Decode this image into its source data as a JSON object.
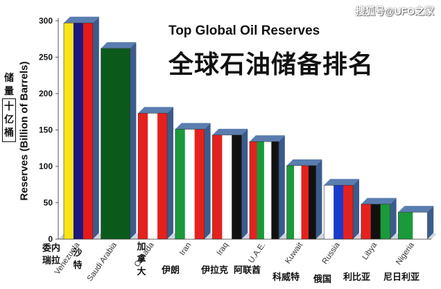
{
  "watermark": "搜狐号@UFO之家",
  "chart_data": {
    "type": "bar",
    "title": "Top Global Oil Reserves",
    "subtitle": "全球石油储备排名",
    "ylabel": "Reserves (Billion of Barrels)",
    "ylabel_cn": [
      "储",
      "量",
      "十",
      "亿",
      "桶"
    ],
    "ylim": [
      0,
      300
    ],
    "yticks": [
      0,
      50,
      100,
      150,
      200,
      250,
      300
    ],
    "categories": [
      "Venezuela",
      "Saudi Arabia",
      "Canada",
      "Iran",
      "Iraq",
      "U.A.E.",
      "Kuwait",
      "Russia",
      "Libya",
      "Nigeria"
    ],
    "categories_cn": [
      "委内瑞拉",
      "沙特",
      "加拿大",
      "伊朗",
      "伊拉克",
      "阿联酋",
      "科威特",
      "俄国",
      "利比亚",
      "尼日利亚"
    ],
    "values": [
      297,
      262,
      173,
      151,
      143,
      134,
      101,
      74,
      48,
      37
    ],
    "flag_colors": [
      [
        "#f7e51a",
        "#1a1a80",
        "#e51a1a"
      ],
      [
        "#0b5a1c"
      ],
      [
        "#e5211e",
        "#ffffff",
        "#e5211e"
      ],
      [
        "#1a9a3a",
        "#ffffff",
        "#e5211e"
      ],
      [
        "#e5211e",
        "#ffffff",
        "#111111"
      ],
      [
        "#e5211e",
        "#1a9a3a",
        "#ffffff",
        "#111111"
      ],
      [
        "#1a9a3a",
        "#ffffff",
        "#e5211e",
        "#111111"
      ],
      [
        "#ffffff",
        "#1a3ac8",
        "#e5211e"
      ],
      [
        "#e5211e",
        "#111111",
        "#1a9a3a"
      ],
      [
        "#1a9a3a",
        "#ffffff"
      ]
    ],
    "grid": false,
    "legend": "none"
  }
}
